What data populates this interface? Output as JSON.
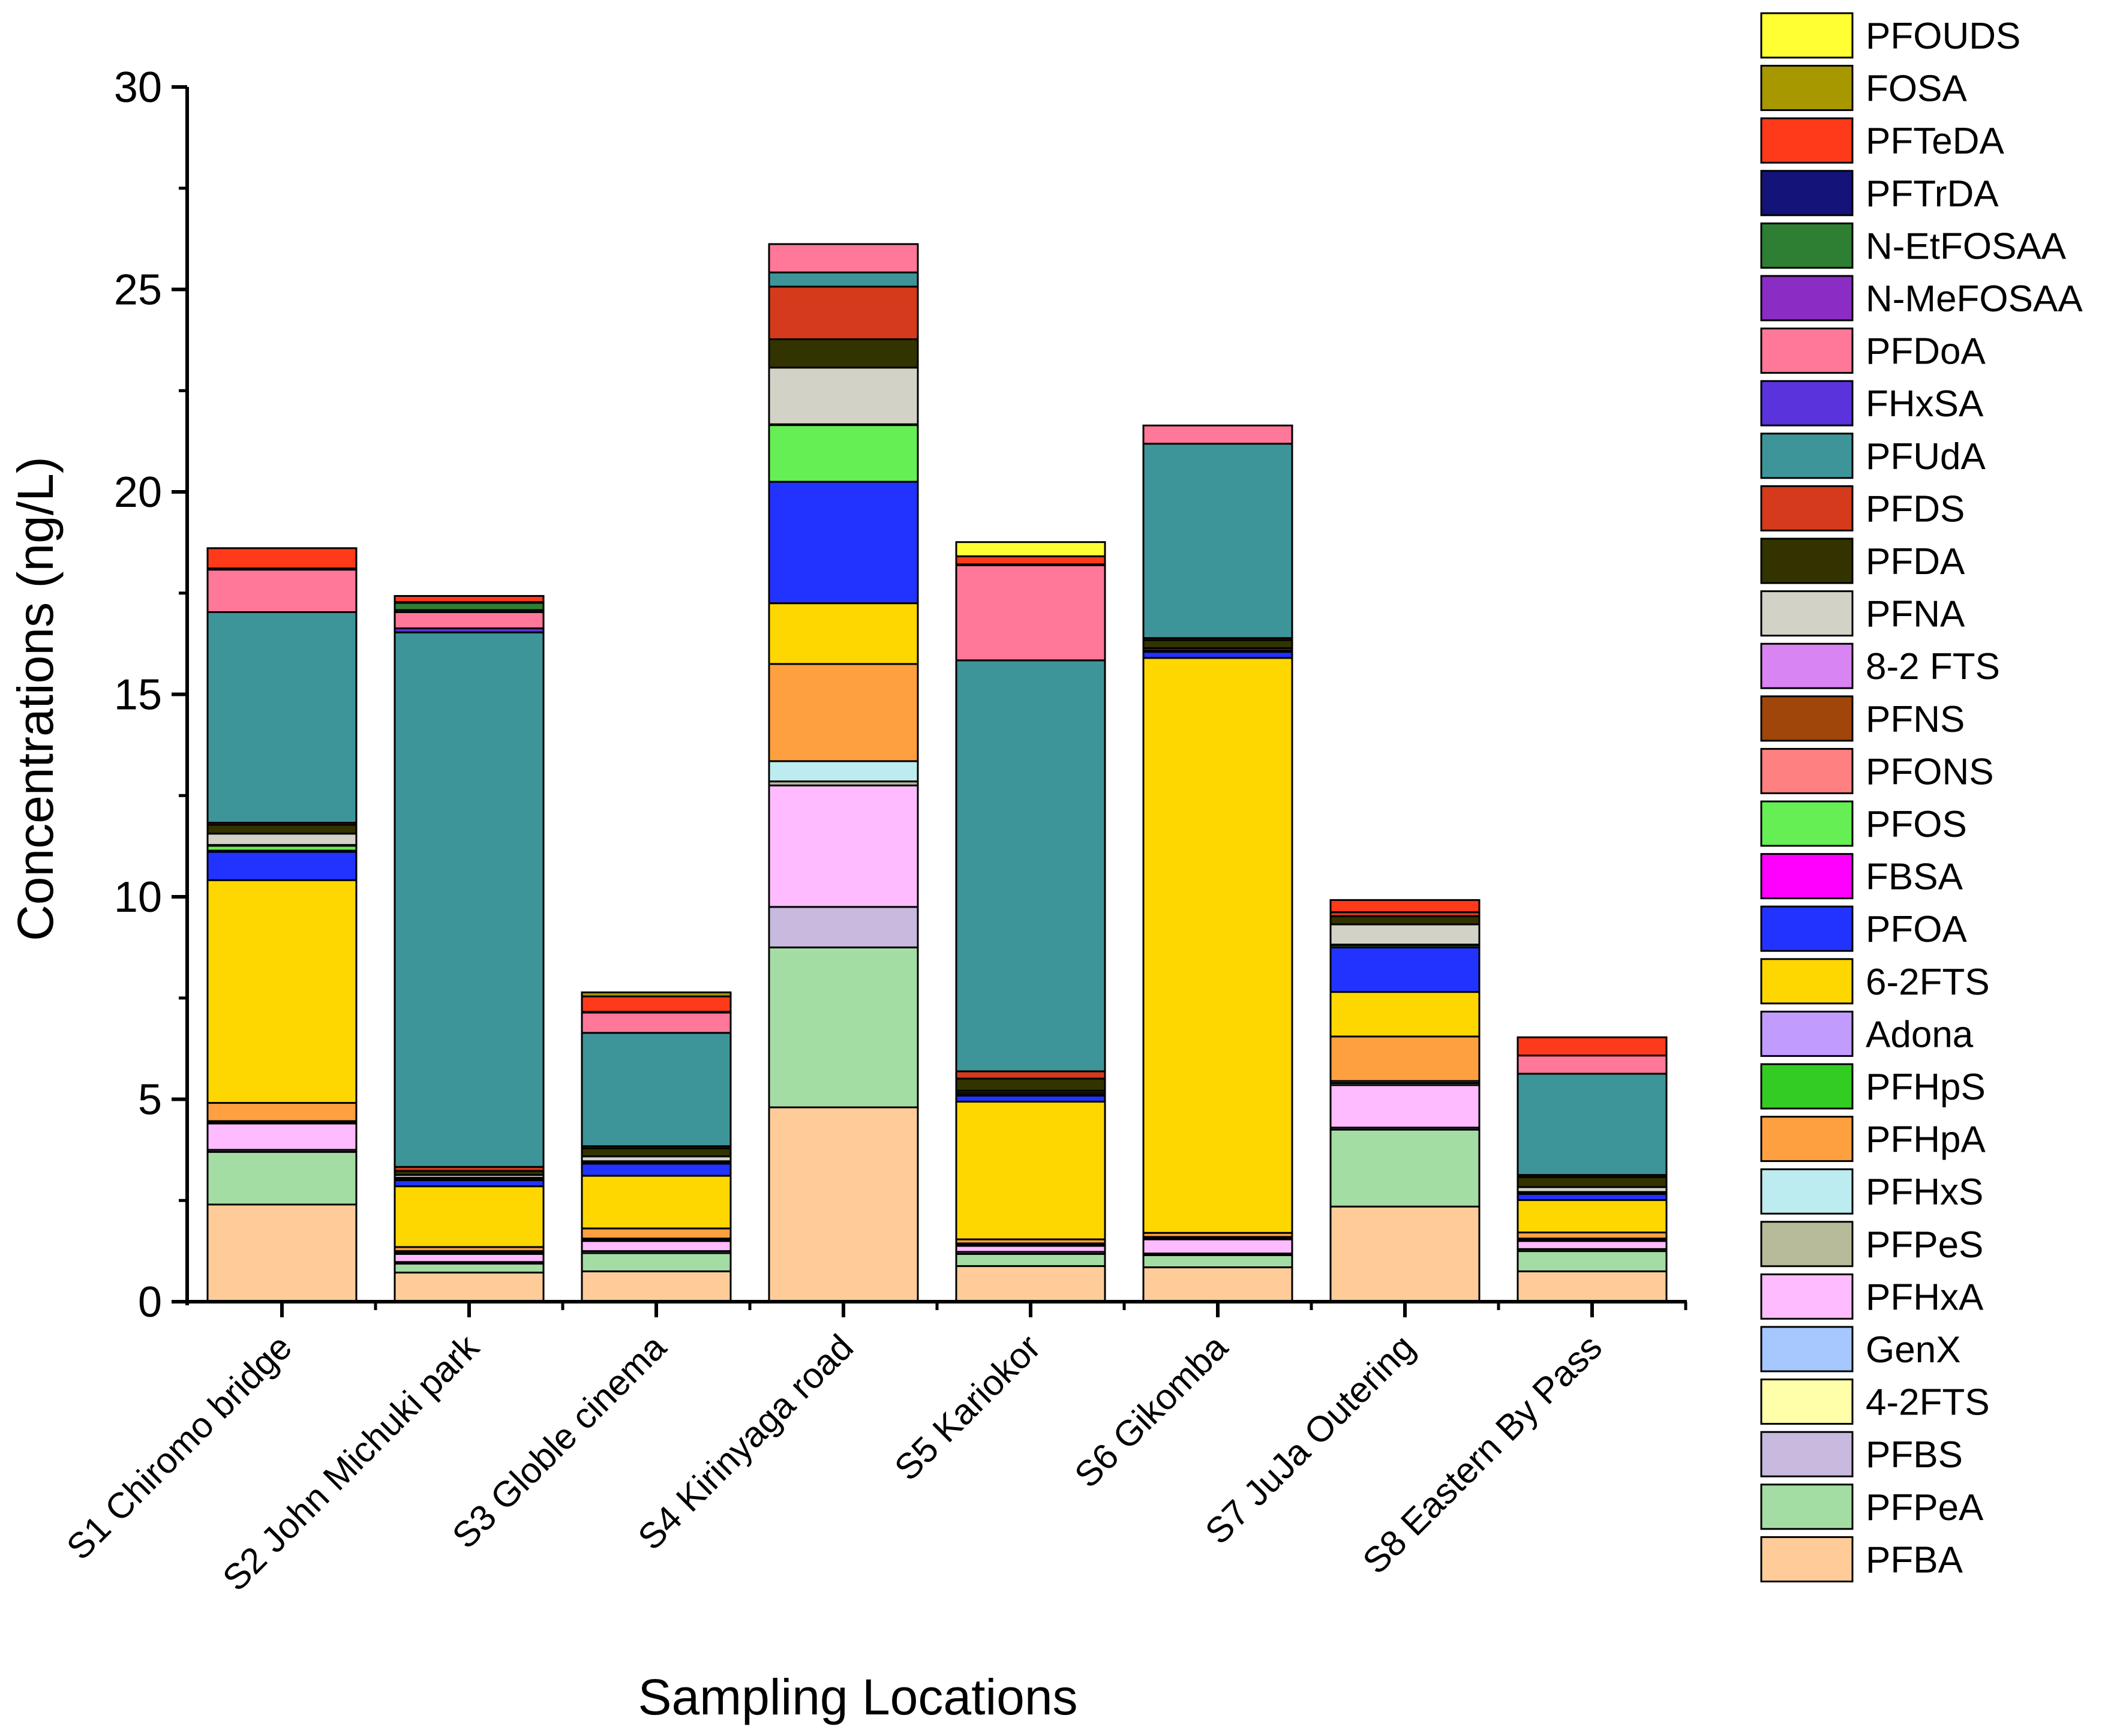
{
  "chart_data": {
    "type": "bar",
    "stacked": true,
    "title": "",
    "xlabel": "Sampling Locations",
    "ylabel": "Concentrations (ng/L)",
    "ylim": [
      0,
      30
    ],
    "yticks": [
      0,
      5,
      10,
      15,
      20,
      25,
      30
    ],
    "grid": false,
    "legend_position": "right",
    "categories": [
      "S1 Chiromo bridge",
      "S2 John Michuki park",
      "S3 Globle cinema",
      "S4 Kirinyaga road",
      "S5 Kariokor",
      "S6 Gikomba",
      "S7 JuJa Outering",
      "S8 Eastern By Pass"
    ],
    "series": [
      {
        "name": "PFBA",
        "color": "#FFCC99",
        "values": [
          2.4,
          0.72,
          0.75,
          4.8,
          0.88,
          0.85,
          2.35,
          0.75
        ]
      },
      {
        "name": "PFPeA",
        "color": "#A3DDA3",
        "values": [
          1.3,
          0.22,
          0.45,
          3.95,
          0.3,
          0.3,
          1.9,
          0.5
        ]
      },
      {
        "name": "PFBS",
        "color": "#C8B9DE",
        "values": [
          0.05,
          0.04,
          0.05,
          1.0,
          0.05,
          0.04,
          0.05,
          0.05
        ]
      },
      {
        "name": "4-2FTS",
        "color": "#FFFFAA",
        "values": [
          0.0,
          0.0,
          0.0,
          0.0,
          0.0,
          0.0,
          0.0,
          0.0
        ]
      },
      {
        "name": "GenX",
        "color": "#A6C8FF",
        "values": [
          0.0,
          0.0,
          0.0,
          0.0,
          0.0,
          0.0,
          0.0,
          0.0
        ]
      },
      {
        "name": "PFHxA",
        "color": "#FFBBFF",
        "values": [
          0.65,
          0.2,
          0.25,
          3.0,
          0.15,
          0.35,
          1.05,
          0.2
        ]
      },
      {
        "name": "PFPeS",
        "color": "#B7BB99",
        "values": [
          0.03,
          0.04,
          0.03,
          0.1,
          0.03,
          0.03,
          0.05,
          0.03
        ]
      },
      {
        "name": "PFHxS",
        "color": "#BCECEF",
        "values": [
          0.03,
          0.03,
          0.03,
          0.5,
          0.03,
          0.03,
          0.05,
          0.03
        ]
      },
      {
        "name": "PFHpA",
        "color": "#FFA040",
        "values": [
          0.45,
          0.1,
          0.25,
          2.4,
          0.1,
          0.1,
          1.1,
          0.15
        ]
      },
      {
        "name": "PFHpS",
        "color": "#33CC22",
        "values": [
          0.0,
          0.0,
          0.0,
          0.0,
          0.0,
          0.0,
          0.0,
          0.0
        ]
      },
      {
        "name": "Adona",
        "color": "#C29BFF",
        "values": [
          0.0,
          0.0,
          0.0,
          0.0,
          0.0,
          0.0,
          0.0,
          0.0
        ]
      },
      {
        "name": "6-2FTS",
        "color": "#FFD700",
        "values": [
          5.5,
          1.5,
          1.3,
          1.5,
          3.4,
          14.2,
          1.1,
          0.8
        ]
      },
      {
        "name": "PFOA",
        "color": "#2233FF",
        "values": [
          0.7,
          0.15,
          0.3,
          3.0,
          0.15,
          0.15,
          1.1,
          0.15
        ]
      },
      {
        "name": "FBSA",
        "color": "#FF00FF",
        "values": [
          0.03,
          0.02,
          0.0,
          0.0,
          0.0,
          0.0,
          0.0,
          0.0
        ]
      },
      {
        "name": "PFOS",
        "color": "#66EE55",
        "values": [
          0.12,
          0.02,
          0.03,
          1.4,
          0.02,
          0.02,
          0.05,
          0.03
        ]
      },
      {
        "name": "PFONS",
        "color": "#FF8080",
        "values": [
          0.0,
          0.0,
          0.0,
          0.0,
          0.0,
          0.0,
          0.0,
          0.0
        ]
      },
      {
        "name": "PFNS",
        "color": "#A0460A",
        "values": [
          0.02,
          0.02,
          0.03,
          0.02,
          0.05,
          0.02,
          0.02,
          0.02
        ]
      },
      {
        "name": "8-2 FTS",
        "color": "#D884F2",
        "values": [
          0.0,
          0.0,
          0.0,
          0.0,
          0.0,
          0.0,
          0.0,
          0.0
        ]
      },
      {
        "name": "PFNA",
        "color": "#D2D2C6",
        "values": [
          0.28,
          0.07,
          0.12,
          1.4,
          0.05,
          0.05,
          0.5,
          0.12
        ]
      },
      {
        "name": "PFDA",
        "color": "#333300",
        "values": [
          0.22,
          0.1,
          0.2,
          0.7,
          0.3,
          0.2,
          0.2,
          0.25
        ]
      },
      {
        "name": "PFDS",
        "color": "#D43A1B",
        "values": [
          0.05,
          0.1,
          0.05,
          1.3,
          0.18,
          0.05,
          0.1,
          0.05
        ]
      },
      {
        "name": "PFUdA",
        "color": "#3E9599",
        "values": [
          5.2,
          13.2,
          2.8,
          0.35,
          10.15,
          4.8,
          0.0,
          2.5
        ]
      },
      {
        "name": "FHxSA",
        "color": "#5A33DD",
        "values": [
          0.0,
          0.1,
          0.0,
          0.0,
          0.0,
          0.0,
          0.0,
          0.0
        ]
      },
      {
        "name": "PFDoA",
        "color": "#FF7799",
        "values": [
          1.05,
          0.4,
          0.5,
          0.7,
          2.35,
          0.45,
          0.0,
          0.45
        ]
      },
      {
        "name": "N-MeFOSAA",
        "color": "#8B2CC4",
        "values": [
          0.0,
          0.05,
          0.0,
          0.0,
          0.0,
          0.0,
          0.0,
          0.0
        ]
      },
      {
        "name": "N-EtFOSAA",
        "color": "#2E7F33",
        "values": [
          0.0,
          0.18,
          0.0,
          0.0,
          0.0,
          0.0,
          0.0,
          0.0
        ]
      },
      {
        "name": "PFTrDA",
        "color": "#14137A",
        "values": [
          0.03,
          0.02,
          0.02,
          0.0,
          0.02,
          0.0,
          0.0,
          0.0
        ]
      },
      {
        "name": "PFTeDA",
        "color": "#FF3A1A",
        "values": [
          0.5,
          0.15,
          0.38,
          0.0,
          0.2,
          0.0,
          0.3,
          0.45
        ]
      },
      {
        "name": "FOSA",
        "color": "#A89800",
        "values": [
          0.0,
          0.0,
          0.1,
          0.0,
          0.0,
          0.0,
          0.0,
          0.0
        ]
      },
      {
        "name": "PFOUDS",
        "color": "#FFFF33",
        "values": [
          0.0,
          0.0,
          0.0,
          0.0,
          0.35,
          0.0,
          0.0,
          0.0
        ]
      }
    ]
  }
}
